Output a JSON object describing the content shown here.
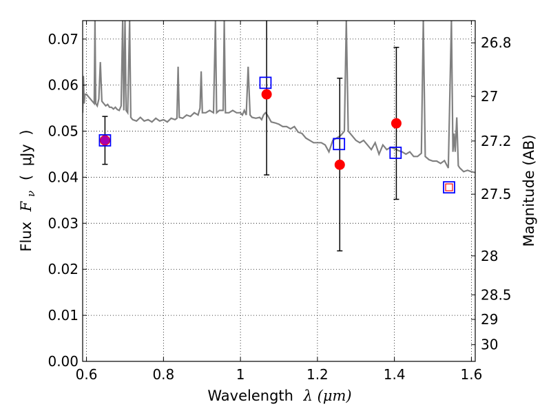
{
  "chart_data": {
    "type": "scatter",
    "xlabel": "Wavelength",
    "xlabel_symbol": "λ (μm)",
    "ylabel": "Flux",
    "ylabel_symbol": "F",
    "ylabel_subscript": "ν",
    "ylabel_unit": "μJy",
    "y2label": "Magnitude (AB)",
    "xlim": [
      0.59,
      1.61
    ],
    "ylim": [
      0.0,
      0.074
    ],
    "grid": true,
    "x_ticks": [
      {
        "value": 0.6,
        "label": "0.6"
      },
      {
        "value": 0.8,
        "label": "0.8"
      },
      {
        "value": 1.0,
        "label": "1"
      },
      {
        "value": 1.2,
        "label": "1.2"
      },
      {
        "value": 1.4,
        "label": "1.4"
      },
      {
        "value": 1.6,
        "label": "1.6"
      }
    ],
    "y_ticks": [
      {
        "value": 0.0,
        "label": "0.00"
      },
      {
        "value": 0.01,
        "label": "0.01"
      },
      {
        "value": 0.02,
        "label": "0.02"
      },
      {
        "value": 0.03,
        "label": "0.03"
      },
      {
        "value": 0.04,
        "label": "0.04"
      },
      {
        "value": 0.05,
        "label": "0.05"
      },
      {
        "value": 0.06,
        "label": "0.06"
      },
      {
        "value": 0.07,
        "label": "0.07"
      }
    ],
    "mag_ticks": [
      {
        "value": 26.8,
        "label": "26.8"
      },
      {
        "value": 27.0,
        "label": "27"
      },
      {
        "value": 27.2,
        "label": "27.2"
      },
      {
        "value": 27.5,
        "label": "27.5"
      },
      {
        "value": 28.0,
        "label": "28"
      },
      {
        "value": 28.5,
        "label": "28.5"
      },
      {
        "value": 29.0,
        "label": "29"
      },
      {
        "value": 30.0,
        "label": "30"
      }
    ],
    "series": [
      {
        "kind": "spectrum",
        "color": "#808080",
        "points": [
          [
            0.59,
            0.054
          ],
          [
            0.592,
            0.062
          ],
          [
            0.594,
            0.056
          ],
          [
            0.596,
            0.058
          ],
          [
            0.6,
            0.058
          ],
          [
            0.605,
            0.0575
          ],
          [
            0.61,
            0.057
          ],
          [
            0.615,
            0.0565
          ],
          [
            0.62,
            0.056
          ],
          [
            0.622,
            0.074
          ],
          [
            0.624,
            0.056
          ],
          [
            0.628,
            0.0555
          ],
          [
            0.632,
            0.057
          ],
          [
            0.636,
            0.065
          ],
          [
            0.64,
            0.0565
          ],
          [
            0.645,
            0.056
          ],
          [
            0.65,
            0.0555
          ],
          [
            0.655,
            0.0558
          ],
          [
            0.66,
            0.0552
          ],
          [
            0.665,
            0.0552
          ],
          [
            0.67,
            0.0548
          ],
          [
            0.675,
            0.0552
          ],
          [
            0.68,
            0.0547
          ],
          [
            0.685,
            0.0545
          ],
          [
            0.69,
            0.0555
          ],
          [
            0.694,
            0.074
          ],
          [
            0.697,
            0.0545
          ],
          [
            0.7,
            0.074
          ],
          [
            0.703,
            0.0545
          ],
          [
            0.707,
            0.054
          ],
          [
            0.712,
            0.074
          ],
          [
            0.715,
            0.053
          ],
          [
            0.72,
            0.0525
          ],
          [
            0.73,
            0.0522
          ],
          [
            0.74,
            0.053
          ],
          [
            0.75,
            0.0522
          ],
          [
            0.76,
            0.0525
          ],
          [
            0.77,
            0.052
          ],
          [
            0.78,
            0.0528
          ],
          [
            0.79,
            0.0522
          ],
          [
            0.8,
            0.0525
          ],
          [
            0.81,
            0.052
          ],
          [
            0.82,
            0.0528
          ],
          [
            0.83,
            0.0525
          ],
          [
            0.835,
            0.0528
          ],
          [
            0.838,
            0.064
          ],
          [
            0.841,
            0.053
          ],
          [
            0.85,
            0.0528
          ],
          [
            0.86,
            0.0535
          ],
          [
            0.87,
            0.0532
          ],
          [
            0.88,
            0.054
          ],
          [
            0.89,
            0.0535
          ],
          [
            0.895,
            0.055
          ],
          [
            0.898,
            0.063
          ],
          [
            0.901,
            0.054
          ],
          [
            0.91,
            0.054
          ],
          [
            0.92,
            0.0545
          ],
          [
            0.93,
            0.054
          ],
          [
            0.935,
            0.074
          ],
          [
            0.938,
            0.054
          ],
          [
            0.945,
            0.0545
          ],
          [
            0.955,
            0.0545
          ],
          [
            0.958,
            0.074
          ],
          [
            0.961,
            0.054
          ],
          [
            0.97,
            0.054
          ],
          [
            0.98,
            0.0545
          ],
          [
            0.99,
            0.054
          ],
          [
            1.0,
            0.054
          ],
          [
            1.005,
            0.0535
          ],
          [
            1.01,
            0.0545
          ],
          [
            1.015,
            0.0535
          ],
          [
            1.02,
            0.064
          ],
          [
            1.025,
            0.0535
          ],
          [
            1.03,
            0.053
          ],
          [
            1.04,
            0.0528
          ],
          [
            1.05,
            0.053
          ],
          [
            1.055,
            0.0525
          ],
          [
            1.06,
            0.0535
          ],
          [
            1.065,
            0.054
          ],
          [
            1.07,
            0.0535
          ],
          [
            1.08,
            0.052
          ],
          [
            1.09,
            0.0518
          ],
          [
            1.1,
            0.0515
          ],
          [
            1.11,
            0.051
          ],
          [
            1.12,
            0.051
          ],
          [
            1.13,
            0.0505
          ],
          [
            1.14,
            0.051
          ],
          [
            1.15,
            0.0498
          ],
          [
            1.16,
            0.0495
          ],
          [
            1.17,
            0.0485
          ],
          [
            1.18,
            0.048
          ],
          [
            1.19,
            0.0475
          ],
          [
            1.2,
            0.0475
          ],
          [
            1.21,
            0.0475
          ],
          [
            1.22,
            0.047
          ],
          [
            1.23,
            0.0455
          ],
          [
            1.24,
            0.048
          ],
          [
            1.25,
            0.0485
          ],
          [
            1.26,
            0.049
          ],
          [
            1.27,
            0.05
          ],
          [
            1.275,
            0.074
          ],
          [
            1.28,
            0.05
          ],
          [
            1.29,
            0.049
          ],
          [
            1.3,
            0.048
          ],
          [
            1.31,
            0.0475
          ],
          [
            1.32,
            0.048
          ],
          [
            1.33,
            0.047
          ],
          [
            1.34,
            0.046
          ],
          [
            1.35,
            0.0475
          ],
          [
            1.36,
            0.045
          ],
          [
            1.37,
            0.047
          ],
          [
            1.38,
            0.046
          ],
          [
            1.39,
            0.0465
          ],
          [
            1.4,
            0.0462
          ],
          [
            1.41,
            0.0458
          ],
          [
            1.42,
            0.0455
          ],
          [
            1.43,
            0.045
          ],
          [
            1.44,
            0.0455
          ],
          [
            1.45,
            0.0445
          ],
          [
            1.46,
            0.0445
          ],
          [
            1.47,
            0.0452
          ],
          [
            1.475,
            0.074
          ],
          [
            1.48,
            0.0445
          ],
          [
            1.49,
            0.0438
          ],
          [
            1.5,
            0.0435
          ],
          [
            1.51,
            0.0435
          ],
          [
            1.52,
            0.043
          ],
          [
            1.53,
            0.0436
          ],
          [
            1.54,
            0.042
          ],
          [
            1.548,
            0.074
          ],
          [
            1.552,
            0.0455
          ],
          [
            1.555,
            0.0495
          ],
          [
            1.558,
            0.0455
          ],
          [
            1.562,
            0.053
          ],
          [
            1.566,
            0.0425
          ],
          [
            1.57,
            0.042
          ],
          [
            1.58,
            0.0412
          ],
          [
            1.59,
            0.0415
          ],
          [
            1.6,
            0.0412
          ],
          [
            1.61,
            0.041
          ]
        ]
      },
      {
        "kind": "observed",
        "marker": "red-circle",
        "color": "#ff0000",
        "points": [
          {
            "x": 0.648,
            "y": 0.048,
            "yerr_low": 0.0428,
            "yerr_high": 0.0532
          },
          {
            "x": 1.068,
            "y": 0.058,
            "yerr_low": 0.0405,
            "yerr_high": 0.074
          },
          {
            "x": 1.258,
            "y": 0.0427,
            "yerr_low": 0.024,
            "yerr_high": 0.0615
          },
          {
            "x": 1.405,
            "y": 0.0517,
            "yerr_low": 0.0352,
            "yerr_high": 0.0682
          }
        ]
      },
      {
        "kind": "model",
        "marker": "blue-square",
        "color": "#0000ff",
        "points": [
          {
            "x": 0.648,
            "y": 0.048
          },
          {
            "x": 1.065,
            "y": 0.0605
          },
          {
            "x": 1.256,
            "y": 0.0472
          },
          {
            "x": 1.403,
            "y": 0.0453
          },
          {
            "x": 1.542,
            "y": 0.0378
          }
        ]
      }
    ]
  }
}
